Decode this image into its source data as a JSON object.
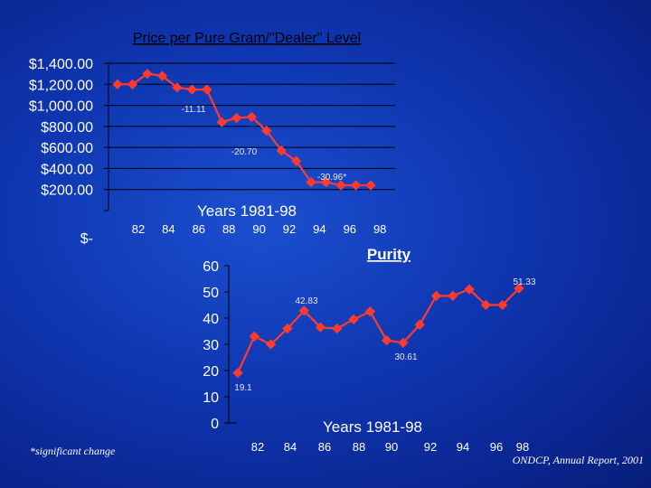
{
  "chart_data": [
    {
      "type": "line",
      "title": "Price per Pure Gram/\"Dealer\" Level",
      "xlabel": "Years 1981-98",
      "ylabel": "",
      "y_tick_labels": [
        "$1,400.00",
        "$1,200.00",
        "$1,000.00",
        "$800.00",
        "$600.00",
        "$400.00",
        "$200.00",
        "$-"
      ],
      "ylim": [
        0,
        1400
      ],
      "x_tick_labels": [
        "82",
        "84",
        "86",
        "88",
        "90",
        "92",
        "94",
        "96",
        "98"
      ],
      "x": [
        81,
        82,
        83,
        84,
        85,
        86,
        87,
        88,
        89,
        90,
        91,
        92,
        93,
        94,
        95,
        96,
        97,
        98
      ],
      "values": [
        1200,
        1200,
        1300,
        1280,
        1170,
        1150,
        1150,
        840,
        880,
        890,
        760,
        570,
        470,
        270,
        270,
        240,
        240,
        240
      ],
      "annotations": [
        "-11.11",
        "-20.70",
        "-30.96*"
      ],
      "grid": true
    },
    {
      "type": "line",
      "title": "Purity",
      "xlabel": "Years 1981-98",
      "ylabel": "",
      "y_tick_labels": [
        "60",
        "50",
        "40",
        "30",
        "20",
        "10",
        "0"
      ],
      "ylim": [
        0,
        60
      ],
      "x_tick_labels": [
        "82",
        "84",
        "86",
        "88",
        "90",
        "92",
        "94",
        "96",
        "98"
      ],
      "x": [
        81,
        82,
        83,
        84,
        85,
        86,
        87,
        88,
        89,
        90,
        91,
        92,
        93,
        94,
        95,
        96,
        97,
        98
      ],
      "values": [
        19.1,
        33,
        30,
        36,
        42.83,
        36.5,
        36,
        39.5,
        42.5,
        31.5,
        30.61,
        37.5,
        48.5,
        48.5,
        51,
        45,
        45,
        51.33
      ],
      "annotations": [
        "51.33",
        "42.83",
        "30.61",
        "19.1"
      ],
      "grid": false
    }
  ],
  "footnote": "*significant change",
  "source": "ONDCP, Annual Report, 2001",
  "colors": {
    "line": "#ff3b2f",
    "title1": "#000000",
    "background": "#1240c0"
  }
}
